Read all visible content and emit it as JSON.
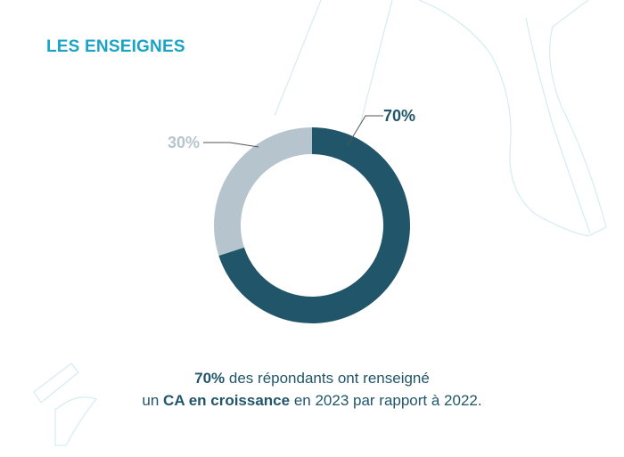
{
  "title": "LES ENSEIGNES",
  "colors": {
    "accent": "#1aa3c4",
    "primary": "#21566a",
    "secondary": "#b6c5cd",
    "decor": "#d5ecef",
    "text": "#21566a"
  },
  "chart_data": {
    "type": "pie",
    "style": "donut",
    "slices": [
      {
        "label": "70%",
        "value": 70,
        "color": "#21566a"
      },
      {
        "label": "30%",
        "value": 30,
        "color": "#b6c5cd"
      }
    ]
  },
  "caption": {
    "line1": {
      "bold": "70%",
      "text": " des répondants ont renseigné"
    },
    "line2": {
      "pre": "un ",
      "bold": "CA en croissance",
      "text": " en 2023 par rapport à 2022."
    }
  }
}
